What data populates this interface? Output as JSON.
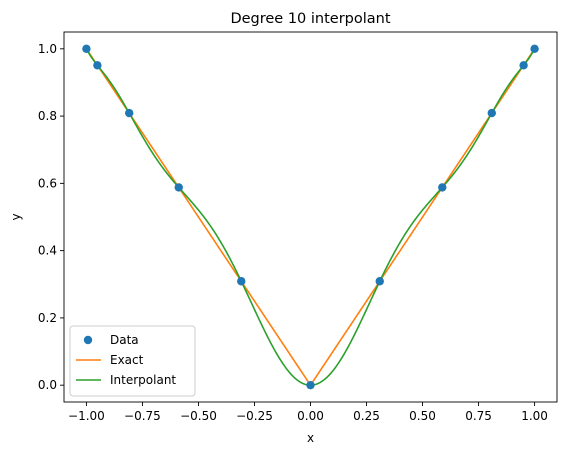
{
  "chart_data": {
    "type": "line",
    "title": "Degree 10 interpolant",
    "xlabel": "x",
    "ylabel": "y",
    "xlim": [
      -1.1,
      1.1
    ],
    "ylim": [
      -0.05,
      1.05
    ],
    "xticks": [
      -1.0,
      -0.75,
      -0.5,
      -0.25,
      0.0,
      0.25,
      0.5,
      0.75,
      1.0
    ],
    "xtick_labels": [
      "−1.00",
      "−0.75",
      "−0.50",
      "−0.25",
      "0.00",
      "0.25",
      "0.50",
      "0.75",
      "1.00"
    ],
    "yticks": [
      0.0,
      0.2,
      0.4,
      0.6,
      0.8,
      1.0
    ],
    "ytick_labels": [
      "0.0",
      "0.2",
      "0.4",
      "0.6",
      "0.8",
      "1.0"
    ],
    "legend_position": "lower-left",
    "series": [
      {
        "name": "Data",
        "kind": "markers",
        "color": "#1f77b4",
        "x": [
          -1.0,
          -0.951,
          -0.809,
          -0.588,
          -0.309,
          0.0,
          0.309,
          0.588,
          0.809,
          0.951,
          1.0
        ],
        "y": [
          1.0,
          0.951,
          0.809,
          0.588,
          0.309,
          0.0,
          0.309,
          0.588,
          0.809,
          0.951,
          1.0
        ]
      },
      {
        "name": "Exact",
        "kind": "line",
        "color": "#ff7f0e",
        "function": "abs(x)"
      },
      {
        "name": "Interpolant",
        "kind": "line",
        "color": "#2ca02c",
        "function": "degree-10 polynomial through the Data points"
      }
    ]
  }
}
